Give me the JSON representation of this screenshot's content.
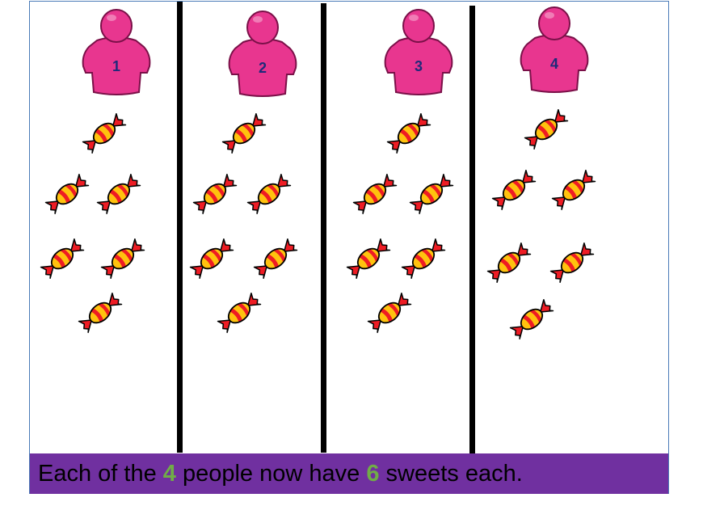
{
  "people": [
    {
      "number": "1",
      "sweets": 6
    },
    {
      "number": "2",
      "sweets": 6
    },
    {
      "number": "3",
      "sweets": 6
    },
    {
      "number": "4",
      "sweets": 6
    }
  ],
  "caption": {
    "part1": "Each of the ",
    "people_count": "4",
    "part2": " people now have ",
    "sweets_each": "6",
    "part3": " sweets each."
  },
  "colors": {
    "person": "#e8368f",
    "caption_bar": "#7030a0",
    "caption_numbers": "#70ad47",
    "sweet_red": "#ee1c24",
    "sweet_yellow": "#ffc20e",
    "frame_border": "#4a7bb7"
  },
  "icons": {
    "person": "person-icon",
    "sweet": "sweet-icon"
  }
}
